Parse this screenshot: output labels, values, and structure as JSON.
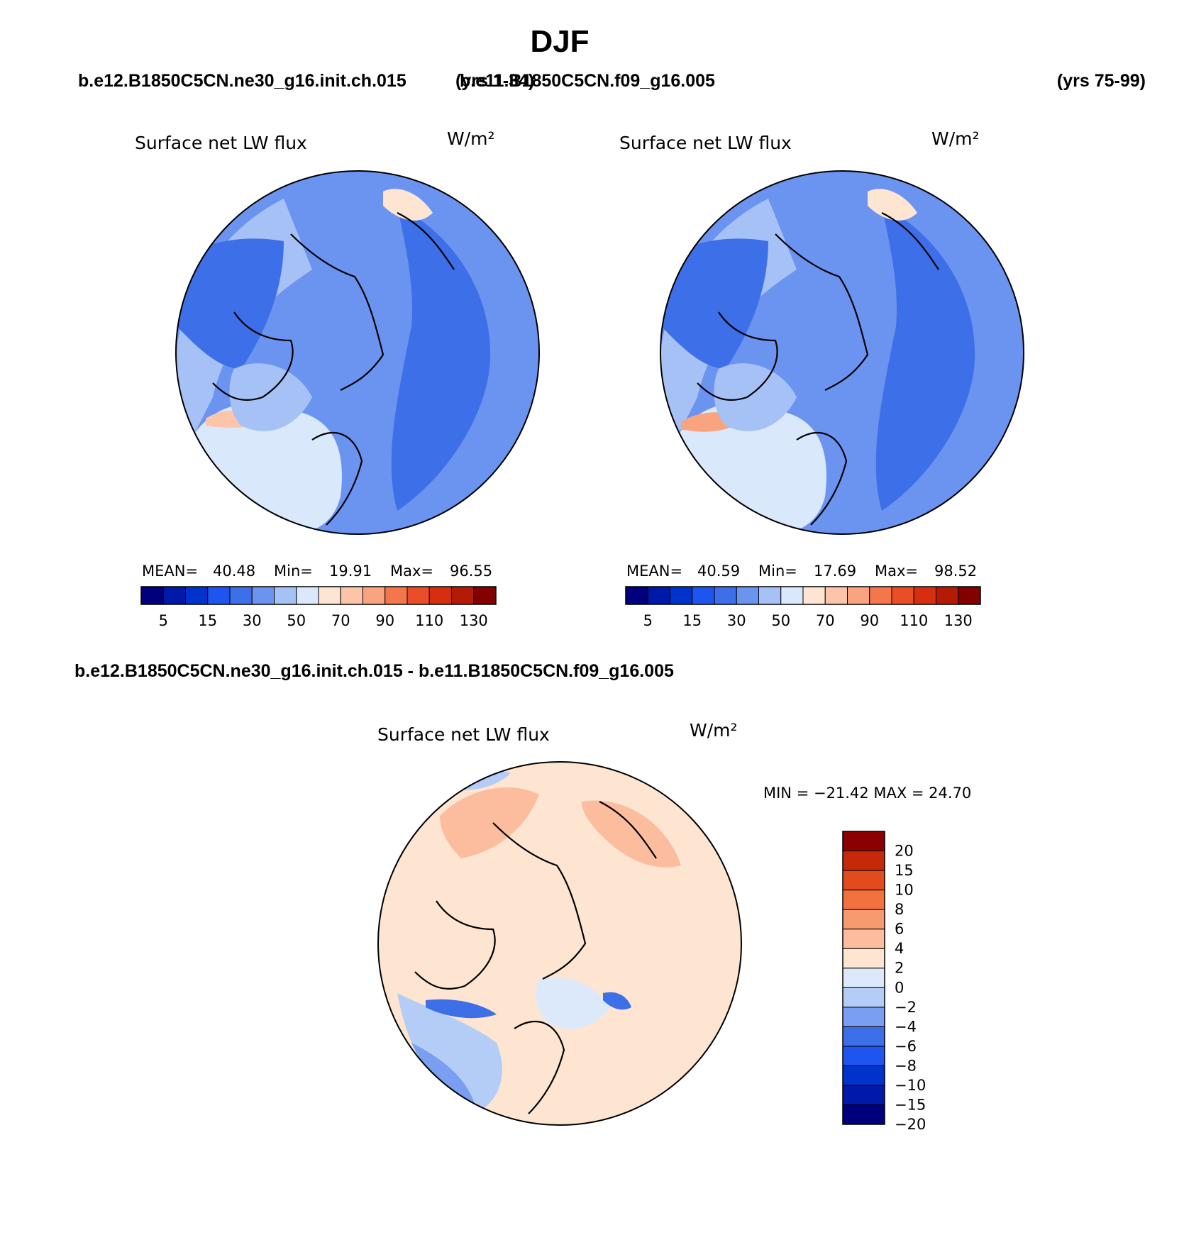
{
  "title": "DJF",
  "header_left": "b.e12.B1850C5CN.ne30_g16.init.ch.015",
  "header_left_years": "(yrs 1-34)",
  "header_right": "b.e11.B1850C5CN.f09_g16.005",
  "header_right_years": "(yrs 75-99)",
  "diff_header": "b.e12.B1850C5CN.ne30_g16.init.ch.015 - b.e11.B1850C5CN.f09_g16.005",
  "colors": {
    "abs_scale": [
      "#00007f",
      "#0019a8",
      "#0033cc",
      "#1f55ef",
      "#3d6fe8",
      "#6b93f0",
      "#a6c1f5",
      "#d9e8fb",
      "#fde5d2",
      "#fcc4a8",
      "#f9a37f",
      "#f4774c",
      "#e94e26",
      "#d52f10",
      "#b41b05",
      "#820000"
    ],
    "diff_scale": [
      "#00007f",
      "#0019a8",
      "#0033cc",
      "#1f55ef",
      "#3d6fe8",
      "#7a9ff2",
      "#b3cdf7",
      "#dce9fb",
      "#fde5d2",
      "#fbbd9d",
      "#f79a70",
      "#f2723f",
      "#e34a1d",
      "#c6290a",
      "#8b0000"
    ],
    "coast": "#000000"
  },
  "chart_data": [
    {
      "type": "heatmap",
      "projection": "north-polar-stereographic",
      "title": "Surface net LW flux",
      "units": "W/m²",
      "stats": {
        "mean_label": "MEAN=",
        "mean": "40.48",
        "min_label": "Min=",
        "min": "19.91",
        "max_label": "Max=",
        "max": "96.55"
      },
      "levels": [
        5,
        10,
        15,
        20,
        30,
        40,
        50,
        60,
        70,
        80,
        90,
        100,
        110,
        120,
        130
      ],
      "tick_labels": [
        "5",
        "15",
        "30",
        "50",
        "70",
        "90",
        "110",
        "130"
      ]
    },
    {
      "type": "heatmap",
      "projection": "north-polar-stereographic",
      "title": "Surface net LW flux",
      "units": "W/m²",
      "stats": {
        "mean_label": "MEAN=",
        "mean": "40.59",
        "min_label": "Min=",
        "min": "17.69",
        "max_label": "Max=",
        "max": "98.52"
      },
      "levels": [
        5,
        10,
        15,
        20,
        30,
        40,
        50,
        60,
        70,
        80,
        90,
        100,
        110,
        120,
        130
      ],
      "tick_labels": [
        "5",
        "15",
        "30",
        "50",
        "70",
        "90",
        "110",
        "130"
      ]
    },
    {
      "type": "heatmap",
      "projection": "north-polar-stereographic",
      "title": "Surface net LW flux",
      "units": "W/m²",
      "stats_text": "MIN = −21.42 MAX =  24.70",
      "levels": [
        -20,
        -15,
        -10,
        -8,
        -6,
        -4,
        -2,
        0,
        2,
        4,
        6,
        8,
        10,
        15,
        20
      ],
      "tick_labels": [
        "20",
        "15",
        "10",
        "8",
        "6",
        "4",
        "2",
        "0",
        "−2",
        "−4",
        "−6",
        "−8",
        "−10",
        "−15",
        "−20"
      ]
    }
  ]
}
